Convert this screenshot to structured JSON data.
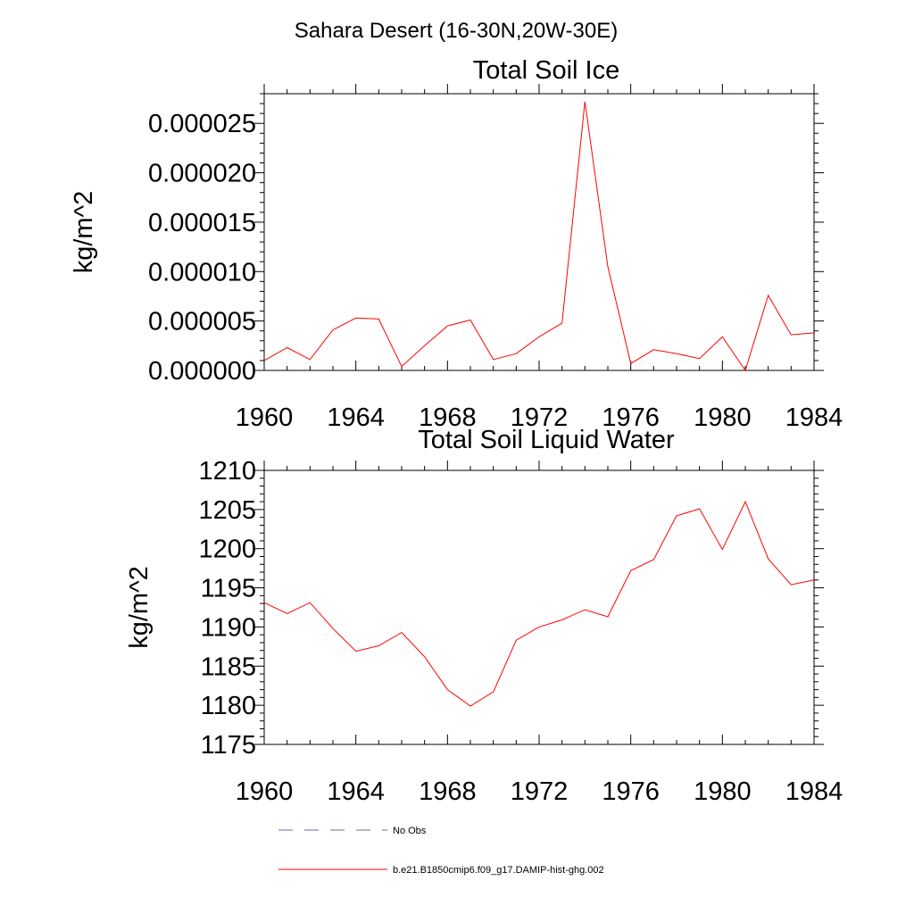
{
  "figure_title": "Sahara Desert (16-30N,20W-30E)",
  "chart_data": [
    {
      "type": "line",
      "title": "Total Soil Ice",
      "xlabel": "",
      "ylabel": "kg/m^2",
      "xlim": [
        1960,
        1984
      ],
      "ylim": [
        0,
        2.8e-05
      ],
      "x_ticks": [
        "1960",
        "1964",
        "1968",
        "1972",
        "1976",
        "1980",
        "1984"
      ],
      "y_ticks": [
        "0.000000",
        "0.000005",
        "0.000010",
        "0.000015",
        "0.000020",
        "0.000025"
      ],
      "x": [
        1960,
        1961,
        1962,
        1963,
        1964,
        1965,
        1966,
        1967,
        1968,
        1969,
        1970,
        1971,
        1972,
        1973,
        1974,
        1975,
        1976,
        1977,
        1978,
        1979,
        1980,
        1981,
        1982,
        1983,
        1984
      ],
      "series": [
        {
          "name": "b.e21.B1850cmip6.f09_g17.DAMIP-hist-ghg.002",
          "color": "#ff0000",
          "values": [
            1e-06,
            2.3e-06,
            1.1e-06,
            4.1e-06,
            5.3e-06,
            5.2e-06,
            4e-07,
            2.5e-06,
            4.5e-06,
            5.1e-06,
            1.1e-06,
            1.7e-06,
            3.4e-06,
            4.8e-06,
            2.72e-05,
            1.05e-05,
            7e-07,
            2.1e-06,
            1.7e-06,
            1.2e-06,
            3.4e-06,
            0.0,
            7.6e-06,
            3.6e-06,
            3.8e-06
          ]
        }
      ],
      "grid": false
    },
    {
      "type": "line",
      "title": "Total Soil Liquid Water",
      "xlabel": "",
      "ylabel": "kg/m^2",
      "xlim": [
        1960,
        1984
      ],
      "ylim": [
        1175,
        1210
      ],
      "x_ticks": [
        "1960",
        "1964",
        "1968",
        "1972",
        "1976",
        "1980",
        "1984"
      ],
      "y_ticks": [
        "1175",
        "1180",
        "1185",
        "1190",
        "1195",
        "1200",
        "1205",
        "1210"
      ],
      "x": [
        1960,
        1961,
        1962,
        1963,
        1964,
        1965,
        1966,
        1967,
        1968,
        1969,
        1970,
        1971,
        1972,
        1973,
        1974,
        1975,
        1976,
        1977,
        1978,
        1979,
        1980,
        1981,
        1982,
        1983,
        1984
      ],
      "series": [
        {
          "name": "b.e21.B1850cmip6.f09_g17.DAMIP-hist-ghg.002",
          "color": "#ff0000",
          "values": [
            1193.1,
            1191.7,
            1193.1,
            1189.8,
            1186.9,
            1187.6,
            1189.3,
            1186.2,
            1182.0,
            1179.9,
            1181.7,
            1188.3,
            1190.0,
            1190.9,
            1192.2,
            1191.3,
            1197.2,
            1198.6,
            1204.2,
            1205.1,
            1199.9,
            1206.0,
            1198.7,
            1195.4,
            1196.0
          ]
        }
      ],
      "grid": false
    }
  ],
  "legend": {
    "placement": "bottom",
    "items": [
      {
        "label": "No Obs",
        "color": "#6b6b99",
        "style": "dashed"
      },
      {
        "label": "b.e21.B1850cmip6.f09_g17.DAMIP-hist-ghg.002",
        "color": "#ff0000",
        "style": "solid"
      }
    ]
  }
}
